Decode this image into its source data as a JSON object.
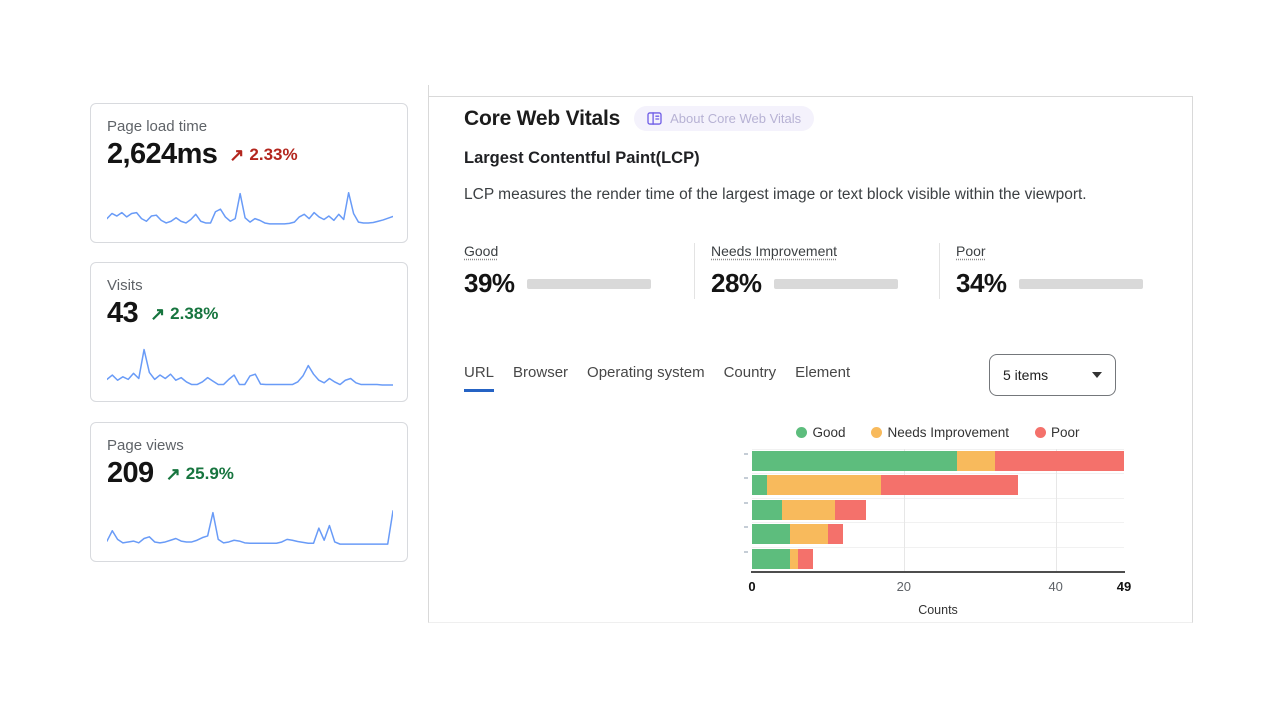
{
  "cards": [
    {
      "title": "Page load time",
      "value": "2,624ms",
      "trend_arrow": "↗",
      "trend": "2.33%",
      "trend_color": "#b3261e",
      "spark": [
        30,
        42,
        36,
        44,
        34,
        42,
        44,
        30,
        24,
        36,
        38,
        26,
        20,
        24,
        32,
        24,
        20,
        28,
        40,
        24,
        20,
        20,
        46,
        52,
        34,
        24,
        30,
        88,
        32,
        22,
        30,
        26,
        20,
        18,
        18,
        18,
        18,
        19,
        22,
        34,
        40,
        30,
        44,
        34,
        28,
        36,
        26,
        40,
        28,
        90,
        42,
        22,
        20,
        20,
        21,
        24,
        27,
        31,
        35
      ]
    },
    {
      "title": "Visits",
      "value": "43",
      "trend_arrow": "↗",
      "trend": "2.38%",
      "trend_color": "#17753f",
      "spark": [
        26,
        36,
        24,
        32,
        26,
        40,
        28,
        95,
        42,
        26,
        36,
        28,
        38,
        24,
        30,
        20,
        14,
        14,
        20,
        30,
        22,
        14,
        14,
        26,
        36,
        14,
        14,
        34,
        38,
        15,
        14,
        14,
        14,
        14,
        14,
        14,
        20,
        34,
        58,
        38,
        24,
        18,
        28,
        20,
        14,
        24,
        28,
        18,
        14,
        14,
        14,
        14,
        13,
        13,
        13
      ]
    },
    {
      "title": "Page views",
      "value": "209",
      "trend_arrow": "↗",
      "trend": "25.9%",
      "trend_color": "#17753f",
      "spark": [
        22,
        46,
        26,
        18,
        20,
        22,
        18,
        28,
        32,
        20,
        18,
        20,
        24,
        28,
        22,
        20,
        20,
        24,
        30,
        34,
        88,
        26,
        18,
        20,
        24,
        22,
        18,
        17,
        17,
        17,
        17,
        17,
        17,
        20,
        26,
        24,
        21,
        19,
        17,
        17,
        52,
        24,
        58,
        20,
        15,
        15,
        15,
        15,
        15,
        15,
        15,
        15,
        15,
        15,
        92
      ]
    }
  ],
  "sparkline_color": "#699bf7",
  "main": {
    "title": "Core Web Vitals",
    "about_badge": {
      "label": "About Core Web Vitals",
      "icon": "book-icon",
      "icon_color": "#6e5ce6",
      "bg_color": "#f4f2fc",
      "text_color": "#b7b2d4"
    },
    "metric": {
      "heading": "Largest Contentful Paint(LCP)",
      "description": "LCP measures the render time of the largest image or text block visible within the viewport."
    },
    "distribution": [
      {
        "label": "Good",
        "value": "39%",
        "pct": 39,
        "color": "#2fab51"
      },
      {
        "label": "Needs Improvement",
        "value": "28%",
        "pct": 28,
        "color": "#f5a73b"
      },
      {
        "label": "Poor",
        "value": "34%",
        "pct": 34,
        "color": "#f5463c"
      }
    ],
    "tabs": [
      {
        "label": "URL",
        "active": true
      },
      {
        "label": "Browser",
        "active": false
      },
      {
        "label": "Operating system",
        "active": false
      },
      {
        "label": "Country",
        "active": false
      },
      {
        "label": "Element",
        "active": false
      }
    ],
    "active_tab_color": "#2563c4",
    "items_dropdown": {
      "value": "5 items",
      "icon": "caret-down-icon"
    }
  },
  "chart_data": {
    "type": "bar",
    "orientation": "horizontal",
    "stacked": true,
    "categories": [
      "",
      "",
      "",
      "",
      ""
    ],
    "series": [
      {
        "name": "Good",
        "color": "#5dbd7d",
        "values": [
          27,
          2,
          4,
          5,
          5
        ]
      },
      {
        "name": "Needs Improvement",
        "color": "#f8ba5c",
        "values": [
          5,
          15,
          7,
          5,
          1
        ]
      },
      {
        "name": "Poor",
        "color": "#f4716b",
        "values": [
          17,
          18,
          4,
          2,
          2
        ]
      }
    ],
    "row_totals": [
      49,
      35,
      15,
      12,
      8
    ],
    "xlim": [
      0,
      49
    ],
    "xticks": [
      0,
      20,
      40,
      49
    ],
    "xlabel": "Counts",
    "legend_position": "top",
    "grid": true
  }
}
